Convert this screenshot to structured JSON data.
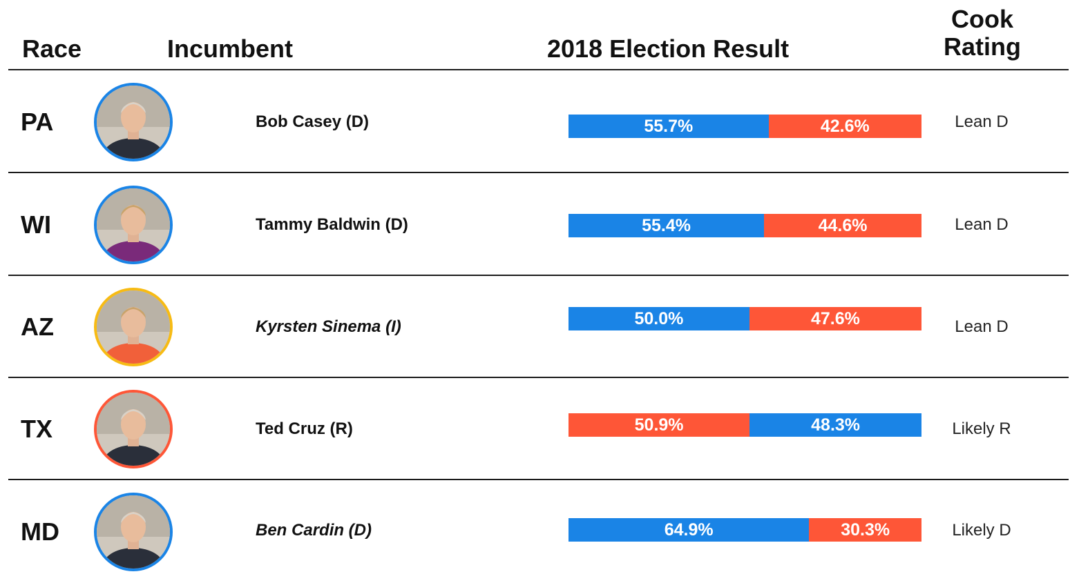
{
  "header": {
    "race": "Race",
    "incumbent": "Incumbent",
    "result": "2018 Election Result",
    "cook_line1": "Cook",
    "cook_line2": "Rating"
  },
  "colors": {
    "dem": "#1a84e6",
    "rep": "#fe5637",
    "ind": "#f7bb14"
  },
  "chart_data": {
    "type": "table",
    "columns": [
      "Race",
      "Incumbent",
      "2018 Election Result",
      "Cook Rating"
    ],
    "rows": [
      {
        "state": "PA",
        "incumbent": "Bob Casey (D)",
        "party": "D",
        "italic": false,
        "photo": "bob-casey-portrait",
        "result": [
          {
            "party": "D",
            "value": 55.7,
            "label": "55.7%"
          },
          {
            "party": "R",
            "value": 42.6,
            "label": "42.6%"
          }
        ],
        "rating": "Lean D"
      },
      {
        "state": "WI",
        "incumbent": "Tammy Baldwin (D)",
        "party": "D",
        "italic": false,
        "photo": "tammy-baldwin-portrait",
        "result": [
          {
            "party": "D",
            "value": 55.4,
            "label": "55.4%"
          },
          {
            "party": "R",
            "value": 44.6,
            "label": "44.6%"
          }
        ],
        "rating": "Lean D"
      },
      {
        "state": "AZ",
        "incumbent": "Kyrsten Sinema (I)",
        "party": "I",
        "italic": true,
        "photo": "kyrsten-sinema-portrait",
        "result": [
          {
            "party": "D",
            "value": 50.0,
            "label": "50.0%"
          },
          {
            "party": "R",
            "value": 47.6,
            "label": "47.6%"
          }
        ],
        "rating": "Lean D"
      },
      {
        "state": "TX",
        "incumbent": "Ted Cruz (R)",
        "party": "R",
        "italic": false,
        "photo": "ted-cruz-portrait",
        "result": [
          {
            "party": "R",
            "value": 50.9,
            "label": "50.9%"
          },
          {
            "party": "D",
            "value": 48.3,
            "label": "48.3%"
          }
        ],
        "rating": "Likely R"
      },
      {
        "state": "MD",
        "incumbent": "Ben Cardin (D)",
        "party": "D",
        "italic": true,
        "photo": "ben-cardin-portrait",
        "result": [
          {
            "party": "D",
            "value": 64.9,
            "label": "64.9%"
          },
          {
            "party": "R",
            "value": 30.3,
            "label": "30.3%"
          }
        ],
        "rating": "Likely D"
      }
    ]
  }
}
